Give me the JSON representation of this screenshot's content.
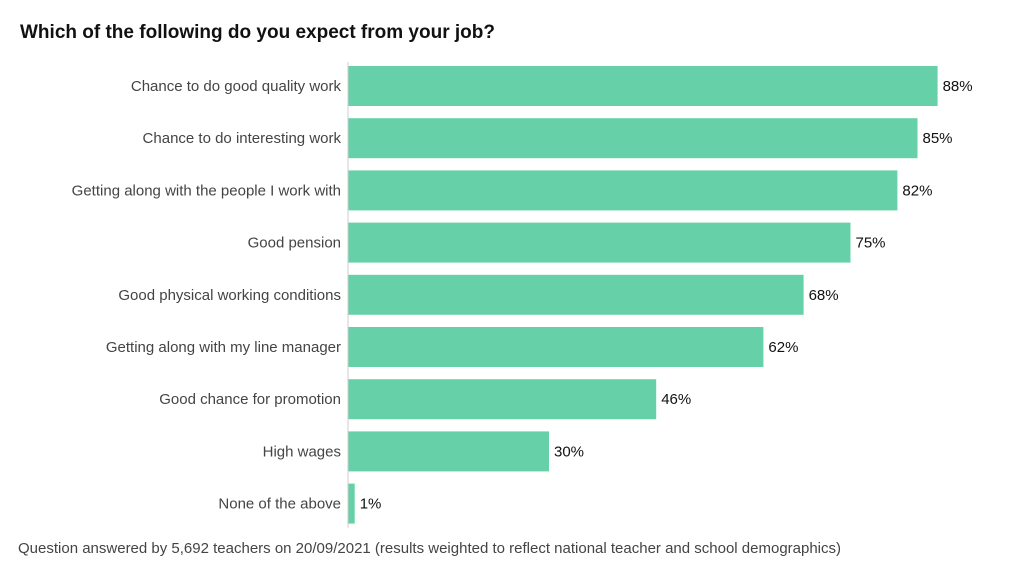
{
  "chart_data": {
    "type": "bar",
    "orientation": "horizontal",
    "title": "Which of the following do you expect from your job?",
    "categories": [
      "Chance to do good quality work",
      "Chance to do interesting work",
      "Getting along with the people I work with",
      "Good pension",
      "Good physical working conditions",
      "Getting along with my line manager",
      "Good chance for promotion",
      "High wages",
      "None of the above"
    ],
    "values": [
      88,
      85,
      82,
      75,
      68,
      62,
      46,
      30,
      1
    ],
    "value_labels": [
      "88%",
      "85%",
      "82%",
      "75%",
      "68%",
      "62%",
      "46%",
      "30%",
      "1%"
    ],
    "xlim": [
      0,
      100
    ],
    "grid": false,
    "bar_color": "#66d1a8",
    "footnote": "Question answered by 5,692 teachers on 20/09/2021 (results weighted to reflect national teacher and school demographics)"
  }
}
